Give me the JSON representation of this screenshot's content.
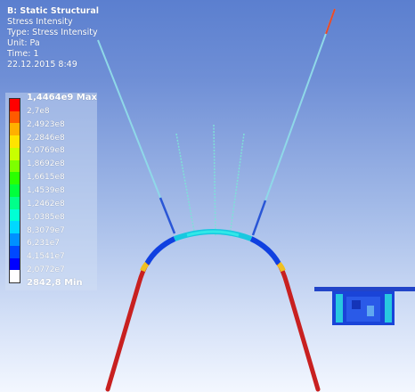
{
  "info": {
    "title": "B: Static Structural",
    "line1": "Stress Intensity",
    "line2": "Type: Stress Intensity",
    "line3": "Unit: Pa",
    "line4": "Time: 1",
    "line5": "22.12.2015 8:49"
  },
  "legend": {
    "labels": [
      "1,4464e9 Max",
      "2,7e8",
      "2,4923e8",
      "2,2846e8",
      "2,0769e8",
      "1,8692e8",
      "1,6615e8",
      "1,4539e8",
      "1,2462e8",
      "1,0385e8",
      "8,3079e7",
      "6,231e7",
      "4,1541e7",
      "2,0772e7",
      "2842,8 Min"
    ],
    "colors": [
      "#ff0000",
      "#ff5a00",
      "#ffb000",
      "#ffe400",
      "#c8ff00",
      "#7dff00",
      "#2bff00",
      "#00ff3c",
      "#00ff8a",
      "#00ffd4",
      "#00d8ff",
      "#0090ff",
      "#0048ff",
      "#0000ff",
      "#ffffff"
    ]
  }
}
